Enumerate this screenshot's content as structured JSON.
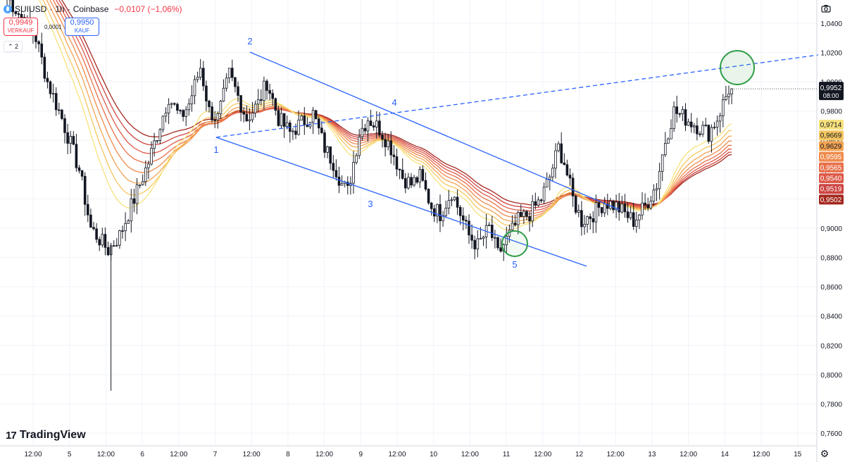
{
  "header": {
    "symbol": "SUIUSD",
    "timeframe": "1h",
    "exchange": "Coinbase",
    "separator": "·",
    "change": "−0,0107 (−1,06%)"
  },
  "quotes": {
    "sell_price": "0,9949",
    "sell_label": "VERKAUF",
    "spread": "0,0001",
    "buy_price": "0,9950",
    "buy_label": "KAUF"
  },
  "indicator_toggle": "⌃ 2",
  "brand": "TradingView",
  "chart_data": {
    "type": "candlestick",
    "price_axis": {
      "min": 0.75,
      "max": 1.05,
      "labels": [
        "1,0400",
        "1,0200",
        "1,0000",
        "0,9800",
        "0,9600",
        "0,9400",
        "0,9200",
        "0,9000",
        "0,8800",
        "0,8600",
        "0,8400",
        "0,8200",
        "0,8000",
        "0,7800",
        "0,7600"
      ]
    },
    "time_axis_labels": [
      "12:00",
      "5",
      "12:00",
      "6",
      "12:00",
      "7",
      "12:00",
      "8",
      "12:00",
      "9",
      "12:00",
      "10",
      "12:00",
      "11",
      "12:00",
      "12",
      "12:00",
      "13",
      "12:00",
      "14",
      "12:00",
      "15"
    ],
    "current_price": {
      "value": "0,9952",
      "countdown": "08:00"
    },
    "ema_ribbon": {
      "colors": [
        "#f7e27c",
        "#f6c760",
        "#f3a452",
        "#ef8b4c",
        "#e8704a",
        "#dd5a48",
        "#cc4340",
        "#a4281e"
      ],
      "end_labels": [
        "0,9714",
        "0,9669",
        "0,9629",
        "0,9595",
        "0,9565",
        "0,9540",
        "0,9519",
        "0,9502"
      ],
      "end_values": [
        0.9714,
        0.9669,
        0.9629,
        0.9595,
        0.9565,
        0.954,
        0.9519,
        0.9502
      ]
    },
    "wave_labels": [
      "1",
      "2",
      "3",
      "4",
      "5"
    ],
    "anchors": [
      {
        "t": 0,
        "p": 1.058
      },
      {
        "t": 10,
        "p": 1.03
      },
      {
        "t": 14,
        "p": 1.0
      },
      {
        "t": 19,
        "p": 0.975
      },
      {
        "t": 25,
        "p": 0.94
      },
      {
        "t": 29,
        "p": 0.9
      },
      {
        "t": 35,
        "p": 0.885
      },
      {
        "t": 39,
        "p": 0.895
      },
      {
        "t": 43,
        "p": 0.915
      },
      {
        "t": 49,
        "p": 0.945
      },
      {
        "t": 56,
        "p": 0.99
      },
      {
        "t": 60,
        "p": 0.975
      },
      {
        "t": 63,
        "p": 0.985
      },
      {
        "t": 67,
        "p": 1.01
      },
      {
        "t": 70,
        "p": 0.98
      },
      {
        "t": 73,
        "p": 0.975
      },
      {
        "t": 77,
        "p": 1.005
      },
      {
        "t": 83,
        "p": 0.975
      },
      {
        "t": 87,
        "p": 0.985
      },
      {
        "t": 90,
        "p": 1.0
      },
      {
        "t": 94,
        "p": 0.975
      },
      {
        "t": 98,
        "p": 0.965
      },
      {
        "t": 102,
        "p": 0.972
      },
      {
        "t": 106,
        "p": 0.978
      },
      {
        "t": 110,
        "p": 0.955
      },
      {
        "t": 113,
        "p": 0.945
      },
      {
        "t": 116,
        "p": 0.93
      },
      {
        "t": 118,
        "p": 0.925
      },
      {
        "t": 122,
        "p": 0.965
      },
      {
        "t": 125,
        "p": 0.975
      },
      {
        "t": 129,
        "p": 0.968
      },
      {
        "t": 133,
        "p": 0.955
      },
      {
        "t": 137,
        "p": 0.935
      },
      {
        "t": 140,
        "p": 0.93
      },
      {
        "t": 143,
        "p": 0.935
      },
      {
        "t": 147,
        "p": 0.915
      },
      {
        "t": 150,
        "p": 0.91
      },
      {
        "t": 154,
        "p": 0.925
      },
      {
        "t": 158,
        "p": 0.905
      },
      {
        "t": 160,
        "p": 0.895
      },
      {
        "t": 163,
        "p": 0.888
      },
      {
        "t": 167,
        "p": 0.9
      },
      {
        "t": 170,
        "p": 0.882
      },
      {
        "t": 173,
        "p": 0.892
      },
      {
        "t": 177,
        "p": 0.905
      },
      {
        "t": 181,
        "p": 0.91
      },
      {
        "t": 185,
        "p": 0.92
      },
      {
        "t": 188,
        "p": 0.935
      },
      {
        "t": 191,
        "p": 0.955
      },
      {
        "t": 193,
        "p": 0.945
      },
      {
        "t": 196,
        "p": 0.92
      },
      {
        "t": 199,
        "p": 0.905
      },
      {
        "t": 203,
        "p": 0.91
      },
      {
        "t": 207,
        "p": 0.918
      },
      {
        "t": 211,
        "p": 0.915
      },
      {
        "t": 214,
        "p": 0.91
      },
      {
        "t": 217,
        "p": 0.905
      },
      {
        "t": 221,
        "p": 0.915
      },
      {
        "t": 225,
        "p": 0.93
      },
      {
        "t": 228,
        "p": 0.96
      },
      {
        "t": 231,
        "p": 0.98
      },
      {
        "t": 235,
        "p": 0.975
      },
      {
        "t": 239,
        "p": 0.97
      },
      {
        "t": 243,
        "p": 0.965
      },
      {
        "t": 246,
        "p": 0.975
      },
      {
        "t": 248,
        "p": 0.985
      },
      {
        "t": 250,
        "p": 0.995
      },
      {
        "t": 251,
        "p": 0.9952
      }
    ]
  }
}
